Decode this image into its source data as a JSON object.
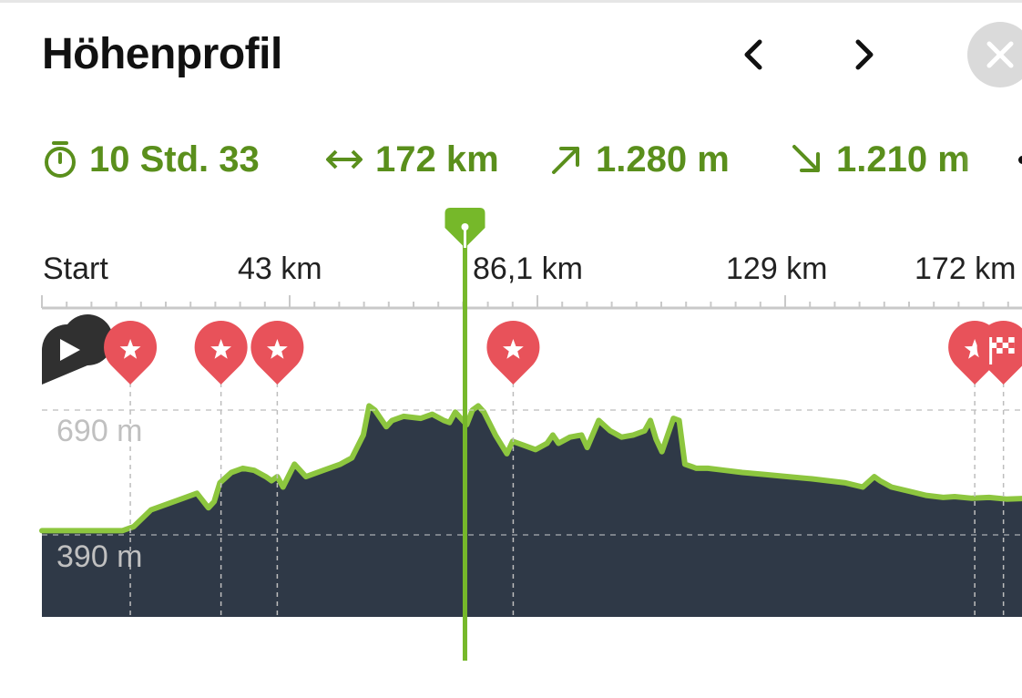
{
  "header": {
    "title": "Höhenprofil",
    "prev_icon": "chevron-left-icon",
    "next_icon": "chevron-right-icon",
    "close_icon": "close-icon"
  },
  "stats": {
    "duration": "10 Std. 33",
    "distance": "172 km",
    "ascent": "1.280 m",
    "descent": "1.210 m",
    "more_icon": "more-dots-icon"
  },
  "axis": {
    "ticks": [
      "Start",
      "43 km",
      "86,1 km",
      "129 km",
      "172 km"
    ],
    "elevation_labels": [
      "690 m",
      "390 m"
    ]
  },
  "waypoints": [
    {
      "type": "start",
      "icon": "play-icon"
    },
    {
      "type": "highlight",
      "icon": "star-icon"
    },
    {
      "type": "highlight",
      "icon": "star-icon"
    },
    {
      "type": "highlight",
      "icon": "star-icon"
    },
    {
      "type": "highlight",
      "icon": "star-icon"
    },
    {
      "type": "highlight",
      "icon": "star-icon"
    },
    {
      "type": "finish",
      "icon": "finish-flag-icon"
    }
  ],
  "colors": {
    "accent": "#5a8f1c",
    "profile_fill": "#2f3947",
    "profile_line": "#8dc63f",
    "marker_red": "#e8525a",
    "cursor_green": "#76b82a"
  },
  "chart_data": {
    "type": "area",
    "x_unit": "km",
    "y_unit": "m",
    "x_range": [
      0,
      172
    ],
    "y_gridlines": [
      690,
      390
    ],
    "profile": [
      {
        "x": 0,
        "y": 400
      },
      {
        "x": 14,
        "y": 400
      },
      {
        "x": 16,
        "y": 410
      },
      {
        "x": 19,
        "y": 450
      },
      {
        "x": 24,
        "y": 475
      },
      {
        "x": 27,
        "y": 490
      },
      {
        "x": 29,
        "y": 455
      },
      {
        "x": 30,
        "y": 470
      },
      {
        "x": 31,
        "y": 515
      },
      {
        "x": 33,
        "y": 540
      },
      {
        "x": 35,
        "y": 550
      },
      {
        "x": 37,
        "y": 545
      },
      {
        "x": 39,
        "y": 530
      },
      {
        "x": 40,
        "y": 520
      },
      {
        "x": 41,
        "y": 530
      },
      {
        "x": 42,
        "y": 505
      },
      {
        "x": 44,
        "y": 560
      },
      {
        "x": 46,
        "y": 530
      },
      {
        "x": 49,
        "y": 545
      },
      {
        "x": 52,
        "y": 560
      },
      {
        "x": 54,
        "y": 575
      },
      {
        "x": 56,
        "y": 630
      },
      {
        "x": 57,
        "y": 700
      },
      {
        "x": 58,
        "y": 690
      },
      {
        "x": 60,
        "y": 650
      },
      {
        "x": 61,
        "y": 665
      },
      {
        "x": 63,
        "y": 675
      },
      {
        "x": 66,
        "y": 670
      },
      {
        "x": 68,
        "y": 680
      },
      {
        "x": 70,
        "y": 665
      },
      {
        "x": 71,
        "y": 660
      },
      {
        "x": 72,
        "y": 685
      },
      {
        "x": 74,
        "y": 655
      },
      {
        "x": 75,
        "y": 690
      },
      {
        "x": 76,
        "y": 700
      },
      {
        "x": 77,
        "y": 685
      },
      {
        "x": 79,
        "y": 630
      },
      {
        "x": 81,
        "y": 585
      },
      {
        "x": 82,
        "y": 615
      },
      {
        "x": 84,
        "y": 605
      },
      {
        "x": 86,
        "y": 595
      },
      {
        "x": 88,
        "y": 610
      },
      {
        "x": 89,
        "y": 630
      },
      {
        "x": 90,
        "y": 610
      },
      {
        "x": 92,
        "y": 625
      },
      {
        "x": 94,
        "y": 630
      },
      {
        "x": 95,
        "y": 600
      },
      {
        "x": 97,
        "y": 665
      },
      {
        "x": 99,
        "y": 640
      },
      {
        "x": 101,
        "y": 625
      },
      {
        "x": 103,
        "y": 630
      },
      {
        "x": 105,
        "y": 640
      },
      {
        "x": 106,
        "y": 665
      },
      {
        "x": 107,
        "y": 620
      },
      {
        "x": 108,
        "y": 590
      },
      {
        "x": 110,
        "y": 670
      },
      {
        "x": 111,
        "y": 665
      },
      {
        "x": 112,
        "y": 560
      },
      {
        "x": 114,
        "y": 550
      },
      {
        "x": 116,
        "y": 550
      },
      {
        "x": 119,
        "y": 545
      },
      {
        "x": 122,
        "y": 540
      },
      {
        "x": 126,
        "y": 535
      },
      {
        "x": 130,
        "y": 530
      },
      {
        "x": 134,
        "y": 525
      },
      {
        "x": 137,
        "y": 520
      },
      {
        "x": 140,
        "y": 515
      },
      {
        "x": 143,
        "y": 505
      },
      {
        "x": 145,
        "y": 530
      },
      {
        "x": 146,
        "y": 520
      },
      {
        "x": 148,
        "y": 505
      },
      {
        "x": 151,
        "y": 495
      },
      {
        "x": 154,
        "y": 485
      },
      {
        "x": 157,
        "y": 480
      },
      {
        "x": 159,
        "y": 482
      },
      {
        "x": 162,
        "y": 478
      },
      {
        "x": 165,
        "y": 480
      },
      {
        "x": 168,
        "y": 476
      },
      {
        "x": 172,
        "y": 478
      }
    ],
    "cursor_x": 73.7,
    "waypoint_x": [
      0,
      15.4,
      31.2,
      41,
      82.1,
      162.5,
      167.5
    ]
  }
}
